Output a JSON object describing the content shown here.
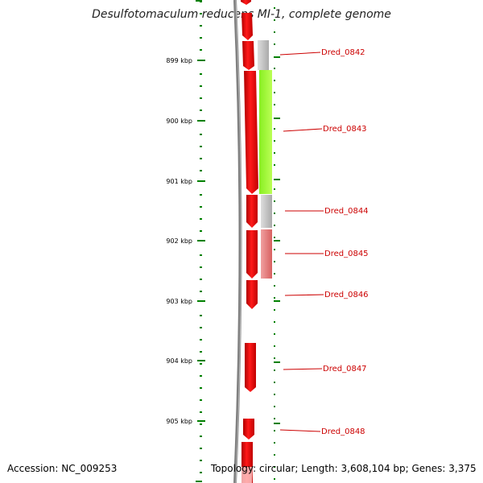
{
  "title": "Desulfotomaculum reducens MI-1, complete genome",
  "accession_label": "Accession: NC_009253",
  "topology_label": "Topology: circular; Length: 3,608,104 bp; Genes: 3,375",
  "colors": {
    "backbone": "#808080",
    "cds": "#ff0000",
    "tick": "#008000",
    "label": "#cc0000",
    "track_gray": "#bdbdbd",
    "track_green": "#99ff33",
    "track_pink": "#e88080"
  },
  "scale": {
    "kbp_ticks": [
      "899 kbp",
      "900 kbp",
      "901 kbp",
      "902 kbp",
      "903 kbp",
      "904 kbp",
      "905 kbp"
    ]
  },
  "genes": [
    {
      "label": "Dred_0842"
    },
    {
      "label": "Dred_0843"
    },
    {
      "label": "Dred_0844"
    },
    {
      "label": "Dred_0845"
    },
    {
      "label": "Dred_0846"
    },
    {
      "label": "Dred_0847"
    },
    {
      "label": "Dred_0848"
    }
  ]
}
